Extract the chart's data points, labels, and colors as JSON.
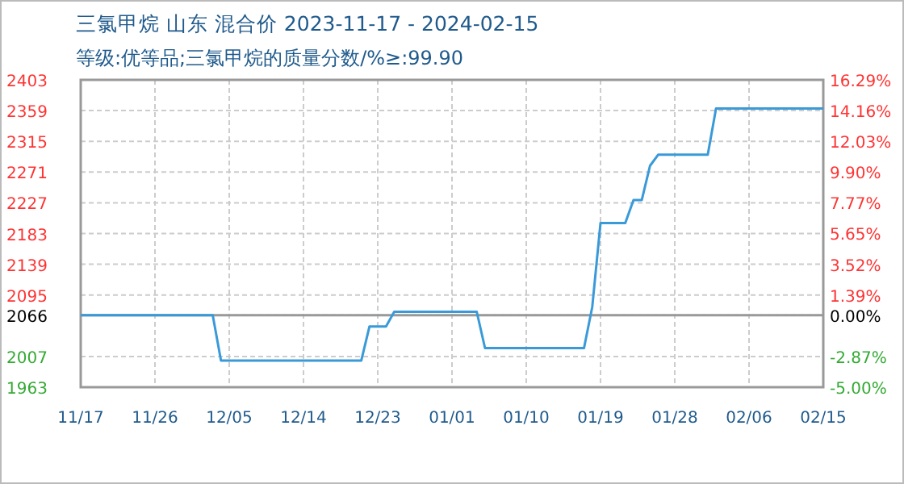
{
  "chart_data": {
    "type": "line",
    "title": "三氯甲烷 山东 混合价 2023-11-17 - 2024-02-15",
    "subtitle": "等级:优等品;三氯甲烷的质量分数/%≥:99.90",
    "x": [
      "2023-11-17",
      "2023-12-03",
      "2023-12-04",
      "2023-12-21",
      "2023-12-22",
      "2023-12-24",
      "2023-12-25",
      "2024-01-04",
      "2024-01-05",
      "2024-01-17",
      "2024-01-18",
      "2024-01-19",
      "2024-01-22",
      "2024-01-23",
      "2024-01-24",
      "2024-01-25",
      "2024-01-26",
      "2024-02-01",
      "2024-02-02",
      "2024-02-15"
    ],
    "series": [
      {
        "color": "#3a9ad9",
        "values": [
          2066,
          2066,
          2001,
          2001,
          2050,
          2050,
          2071,
          2071,
          2019,
          2019,
          2078,
          2198,
          2198,
          2231,
          2231,
          2280,
          2296,
          2296,
          2362,
          2362
        ]
      }
    ],
    "xlim": [
      "2023-11-17",
      "2024-02-15"
    ],
    "xticks": [
      {
        "value": "2023-11-17",
        "label": "11/17"
      },
      {
        "value": "2023-11-26",
        "label": "11/26"
      },
      {
        "value": "2023-12-05",
        "label": "12/05"
      },
      {
        "value": "2023-12-14",
        "label": "12/14"
      },
      {
        "value": "2023-12-23",
        "label": "12/23"
      },
      {
        "value": "2024-01-01",
        "label": "01/01"
      },
      {
        "value": "2024-01-10",
        "label": "01/10"
      },
      {
        "value": "2024-01-19",
        "label": "01/19"
      },
      {
        "value": "2024-01-28",
        "label": "01/28"
      },
      {
        "value": "2024-02-06",
        "label": "02/06"
      },
      {
        "value": "2024-02-15",
        "label": "02/15"
      }
    ],
    "ylim": [
      1963,
      2403
    ],
    "yticks": [
      1963,
      2007,
      2066,
      2095,
      2139,
      2183,
      2227,
      2271,
      2315,
      2359,
      2403
    ],
    "y2lim": [
      -5,
      16.29
    ],
    "y2ticks": [
      {
        "value": -5,
        "label": "-5.00%"
      },
      {
        "value": -2.87,
        "label": "-2.87%"
      },
      {
        "value": 0,
        "label": "0.00%"
      },
      {
        "value": 1.39,
        "label": "1.39%"
      },
      {
        "value": 3.52,
        "label": "3.52%"
      },
      {
        "value": 5.65,
        "label": "5.65%"
      },
      {
        "value": 7.77,
        "label": "7.77%"
      },
      {
        "value": 9.9,
        "label": "9.90%"
      },
      {
        "value": 12.03,
        "label": "12.03%"
      },
      {
        "value": 14.16,
        "label": "14.16%"
      },
      {
        "value": 16.29,
        "label": "16.29%"
      }
    ],
    "ref_lines": [
      {
        "axis": "y",
        "value": 2066,
        "color": "#999999",
        "line_style": "solid"
      }
    ],
    "grid": true,
    "marker": "none",
    "line_style": "solid"
  }
}
